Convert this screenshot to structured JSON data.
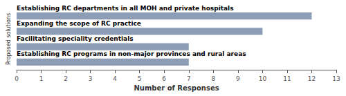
{
  "chart_data": {
    "type": "bar",
    "orientation": "horizontal",
    "categories": [
      "Establishing RC departments in all MOH and private hospitals",
      "Expanding the scope of RC practice",
      "Facilitating speciality credentials",
      "Establishing RC programs in non-major provinces and rural areas"
    ],
    "values": [
      12,
      10,
      7,
      7
    ],
    "color": "#8d9db5",
    "xlabel": "Number of Responses",
    "ylabel": "Proposed solutions",
    "xlim": [
      0,
      13
    ],
    "xticks": [
      0,
      1,
      2,
      3,
      4,
      5,
      6,
      7,
      8,
      9,
      10,
      11,
      12,
      13
    ],
    "grid": false,
    "tick_labels": "x"
  }
}
